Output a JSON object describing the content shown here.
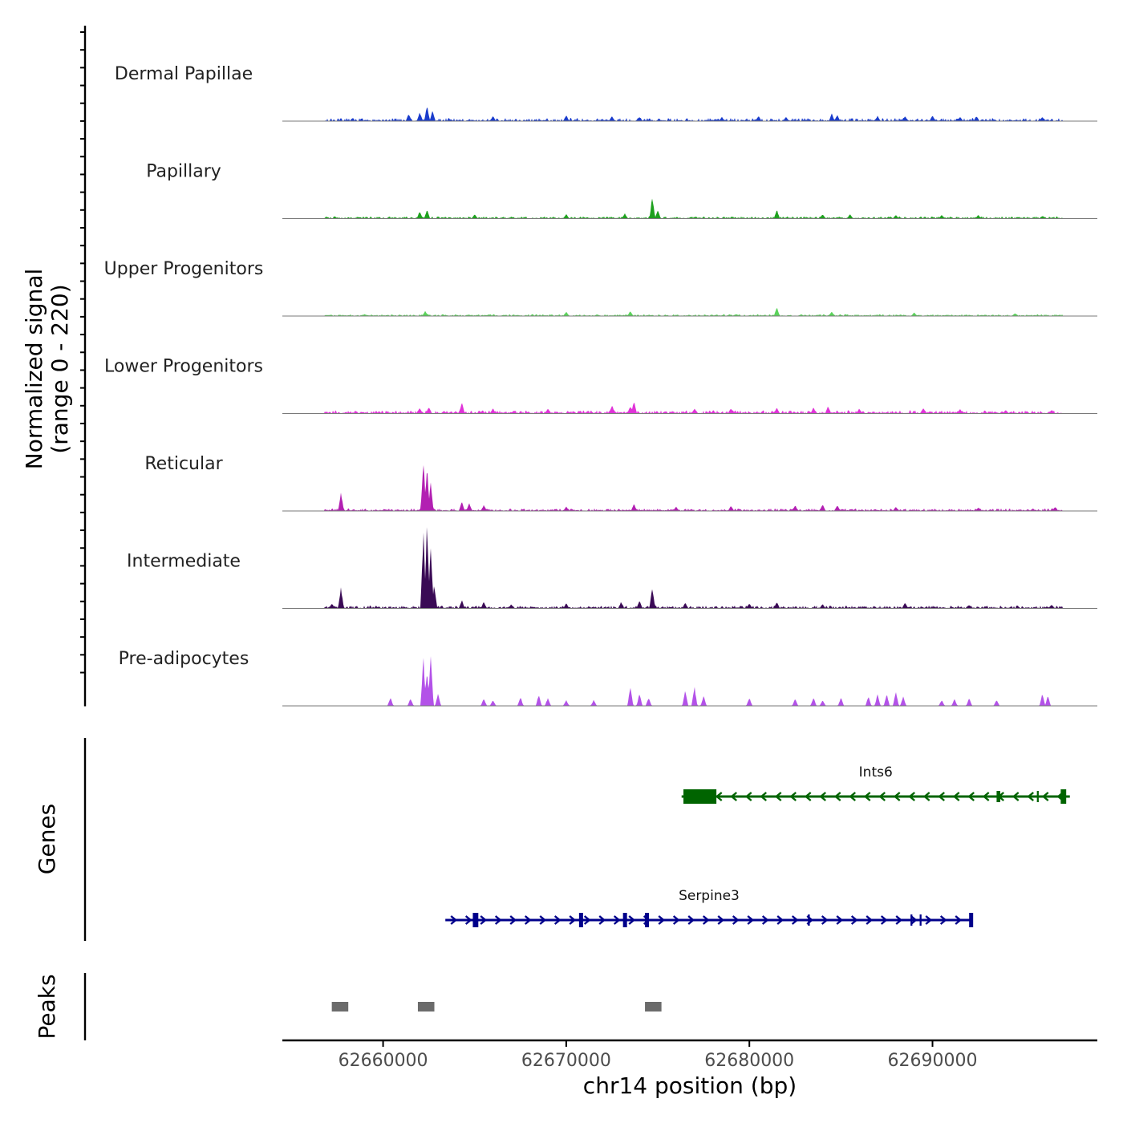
{
  "chart_data": {
    "type": "area",
    "ylabel": "Normalized signal",
    "ylabel_range": "(range 0 - 220)",
    "y_range": [
      0,
      220
    ],
    "xlabel": "chr14 position (bp)",
    "x_range": [
      62654500,
      62699000
    ],
    "x_ticks": [
      62660000,
      62670000,
      62680000,
      62690000
    ],
    "x_tick_labels": [
      "62660000",
      "62670000",
      "62680000",
      "62690000"
    ],
    "signal_span": [
      62656800,
      62697100
    ],
    "tracks": [
      {
        "name": "Dermal Papillae",
        "color": "#1a3ccc",
        "peaks": [
          [
            62661400,
            18
          ],
          [
            62662000,
            22
          ],
          [
            62662400,
            40
          ],
          [
            62662700,
            25
          ],
          [
            62666000,
            12
          ],
          [
            62670000,
            14
          ],
          [
            62672500,
            12
          ],
          [
            62674000,
            10
          ],
          [
            62678500,
            10
          ],
          [
            62680500,
            12
          ],
          [
            62682000,
            10
          ],
          [
            62684500,
            18
          ],
          [
            62684800,
            15
          ],
          [
            62687000,
            12
          ],
          [
            62688500,
            12
          ],
          [
            62690000,
            14
          ],
          [
            62691500,
            10
          ],
          [
            62692400,
            12
          ],
          [
            62696000,
            10
          ]
        ],
        "noise_max": 9
      },
      {
        "name": "Papillary",
        "color": "#1ea11e",
        "peaks": [
          [
            62662000,
            18
          ],
          [
            62662400,
            22
          ],
          [
            62665000,
            10
          ],
          [
            62670000,
            10
          ],
          [
            62673200,
            12
          ],
          [
            62674700,
            55
          ],
          [
            62675000,
            20
          ],
          [
            62681500,
            22
          ],
          [
            62684000,
            10
          ],
          [
            62685500,
            10
          ],
          [
            62688000,
            8
          ],
          [
            62690500,
            8
          ],
          [
            62692500,
            8
          ],
          [
            62696000,
            6
          ]
        ],
        "noise_max": 6
      },
      {
        "name": "Upper Progenitors",
        "color": "#5bd35b",
        "peaks": [
          [
            62662300,
            12
          ],
          [
            62670000,
            10
          ],
          [
            62673500,
            12
          ],
          [
            62681500,
            22
          ],
          [
            62684500,
            10
          ],
          [
            62689000,
            8
          ],
          [
            62694500,
            6
          ]
        ],
        "noise_max": 5
      },
      {
        "name": "Lower Progenitors",
        "color": "#e033d8",
        "peaks": [
          [
            62662000,
            14
          ],
          [
            62662500,
            16
          ],
          [
            62664300,
            28
          ],
          [
            62666000,
            12
          ],
          [
            62669000,
            12
          ],
          [
            62672500,
            20
          ],
          [
            62673500,
            18
          ],
          [
            62673700,
            30
          ],
          [
            62677000,
            12
          ],
          [
            62679000,
            12
          ],
          [
            62681500,
            14
          ],
          [
            62683500,
            14
          ],
          [
            62684300,
            18
          ],
          [
            62686000,
            12
          ],
          [
            62689500,
            14
          ],
          [
            62691500,
            10
          ],
          [
            62694000,
            8
          ],
          [
            62696500,
            8
          ]
        ],
        "noise_max": 9
      },
      {
        "name": "Reticular",
        "color": "#b220b2",
        "peaks": [
          [
            62657700,
            48
          ],
          [
            62662200,
            125
          ],
          [
            62662400,
            110
          ],
          [
            62662600,
            70
          ],
          [
            62664300,
            22
          ],
          [
            62664700,
            18
          ],
          [
            62665500,
            14
          ],
          [
            62670000,
            10
          ],
          [
            62673700,
            18
          ],
          [
            62676000,
            10
          ],
          [
            62679000,
            12
          ],
          [
            62682500,
            14
          ],
          [
            62684000,
            16
          ],
          [
            62684800,
            14
          ],
          [
            62688000,
            10
          ],
          [
            62692500,
            8
          ],
          [
            62696700,
            10
          ]
        ],
        "noise_max": 7
      },
      {
        "name": "Intermediate",
        "color": "#3a0a55",
        "peaks": [
          [
            62657200,
            12
          ],
          [
            62657700,
            52
          ],
          [
            62662200,
            190
          ],
          [
            62662400,
            220
          ],
          [
            62662600,
            160
          ],
          [
            62662800,
            60
          ],
          [
            62664300,
            20
          ],
          [
            62665500,
            16
          ],
          [
            62667000,
            10
          ],
          [
            62670000,
            12
          ],
          [
            62673000,
            16
          ],
          [
            62674000,
            18
          ],
          [
            62674700,
            55
          ],
          [
            62676500,
            14
          ],
          [
            62680000,
            12
          ],
          [
            62681500,
            16
          ],
          [
            62684000,
            10
          ],
          [
            62688500,
            14
          ],
          [
            62692000,
            8
          ],
          [
            62696500,
            8
          ]
        ],
        "noise_max": 8
      },
      {
        "name": "Pre-adipocytes",
        "color": "#b352e8",
        "peaks": [
          [
            62660400,
            20
          ],
          [
            62661500,
            18
          ],
          [
            62662200,
            120
          ],
          [
            62662400,
            90
          ],
          [
            62662600,
            130
          ],
          [
            62663000,
            30
          ],
          [
            62665500,
            18
          ],
          [
            62666000,
            14
          ],
          [
            62667500,
            22
          ],
          [
            62668500,
            28
          ],
          [
            62669000,
            20
          ],
          [
            62670000,
            14
          ],
          [
            62671500,
            14
          ],
          [
            62673500,
            48
          ],
          [
            62674000,
            30
          ],
          [
            62674500,
            20
          ],
          [
            62676500,
            38
          ],
          [
            62677000,
            50
          ],
          [
            62677500,
            25
          ],
          [
            62680000,
            20
          ],
          [
            62682500,
            18
          ],
          [
            62683500,
            20
          ],
          [
            62684000,
            14
          ],
          [
            62685000,
            20
          ],
          [
            62686500,
            24
          ],
          [
            62687000,
            28
          ],
          [
            62687500,
            30
          ],
          [
            62688000,
            36
          ],
          [
            62688400,
            24
          ],
          [
            62690500,
            14
          ],
          [
            62691200,
            16
          ],
          [
            62692000,
            18
          ],
          [
            62693500,
            14
          ],
          [
            62696000,
            30
          ],
          [
            62696300,
            24
          ]
        ],
        "noise_max": 0
      }
    ],
    "genes": [
      {
        "name": "Ints6",
        "color": "#006400",
        "strand": "-",
        "start": 62676300,
        "end": 62697500,
        "exons": [
          [
            62676400,
            62678200,
            "thick"
          ],
          [
            62693500,
            62693700,
            "thin"
          ],
          [
            62695700,
            62695800,
            "thin"
          ],
          [
            62697000,
            62697300,
            "thick"
          ]
        ]
      },
      {
        "name": "Serpine3",
        "color": "#00008b",
        "strand": "+",
        "start": 62663400,
        "end": 62692200,
        "exons": [
          [
            62664900,
            62665200,
            "thick"
          ],
          [
            62670700,
            62670900,
            "thick"
          ],
          [
            62673100,
            62673300,
            "thick"
          ],
          [
            62674300,
            62674500,
            "thick"
          ],
          [
            62683200,
            62683300,
            "thin"
          ],
          [
            62688800,
            62688900,
            "thin"
          ],
          [
            62689300,
            62689400,
            "thin"
          ],
          [
            62692000,
            62692200,
            "thick"
          ]
        ]
      }
    ],
    "peaks_track_label": "Peaks",
    "genes_track_label": "Genes",
    "peak_regions": [
      [
        62657200,
        62658100
      ],
      [
        62661900,
        62662800
      ],
      [
        62674300,
        62675200
      ]
    ]
  }
}
